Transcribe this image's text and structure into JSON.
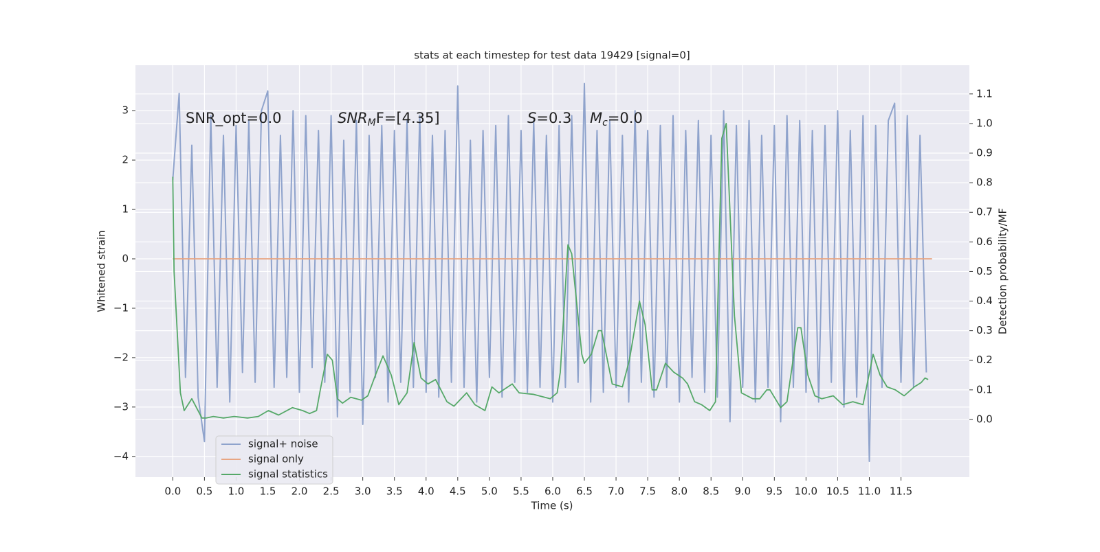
{
  "chart_data": {
    "type": "line",
    "title": "stats at each timestep for test data 19429 [signal=0]",
    "xlabel": "Time (s)",
    "ylabel": "Whitened strain",
    "y2label": "Detection probability/MF",
    "grid": true,
    "legend": "lower left",
    "xlim": [
      -0.59,
      12.58
    ],
    "ylim": [
      -4.42,
      3.92
    ],
    "y2lim": [
      -0.195,
      1.197
    ],
    "xticks": [
      {
        "value": 0,
        "label": "0.0"
      },
      0.5,
      {
        "value": 1,
        "label": "1.0"
      },
      1.5,
      {
        "value": 2,
        "label": "2.0"
      },
      2.5,
      {
        "value": 3,
        "label": "3.0"
      },
      3.5,
      {
        "value": 4,
        "label": "4.0"
      },
      4.5,
      {
        "value": 5,
        "label": "5.0"
      },
      5.5,
      {
        "value": 6,
        "label": "6.0"
      },
      6.5,
      {
        "value": 7,
        "label": "7.0"
      },
      7.5,
      {
        "value": 8,
        "label": "8.0"
      },
      8.5,
      {
        "value": 9,
        "label": "9.0"
      },
      9.5,
      {
        "value": 10,
        "label": "10.0"
      },
      10.5,
      {
        "value": 11,
        "label": "11.0"
      },
      11.5
    ],
    "yticks": [
      {
        "value": -4,
        "label": "−4"
      },
      {
        "value": -3,
        "label": "−3"
      },
      {
        "value": -2,
        "label": "−2"
      },
      {
        "value": -1,
        "label": "−1"
      },
      0,
      1,
      2,
      3
    ],
    "y2ticks": [
      {
        "value": 0,
        "label": "0.0"
      },
      0.1,
      0.2,
      0.3,
      0.4,
      0.5,
      0.6,
      0.7,
      0.8,
      0.9,
      {
        "value": 1,
        "label": "1.0"
      },
      1.1
    ],
    "annotations": [
      {
        "main": "SNR_opt=0.0"
      },
      {
        "main": "SNR",
        "sub": "M",
        "rest": "F=[4.35]"
      },
      {
        "main": "S",
        "rest": "=0.3"
      },
      {
        "main": "M",
        "sub": "c",
        "rest": "=0.0"
      }
    ],
    "series": [
      {
        "name": "signal+ noise",
        "color": "#8fa3cc",
        "x": [
          0,
          0.1,
          0.2,
          0.3,
          0.4,
          0.5,
          0.6,
          0.7,
          0.8,
          0.9,
          1,
          1.1,
          1.2,
          1.3,
          1.4,
          1.5,
          1.6,
          1.7,
          1.8,
          1.9,
          2,
          2.1,
          2.2,
          2.3,
          2.4,
          2.5,
          2.6,
          2.7,
          2.8,
          2.9,
          3,
          3.1,
          3.2,
          3.3,
          3.4,
          3.5,
          3.6,
          3.7,
          3.8,
          3.9,
          4,
          4.1,
          4.2,
          4.3,
          4.4,
          4.5,
          4.6,
          4.7,
          4.8,
          4.9,
          5,
          5.1,
          5.2,
          5.3,
          5.4,
          5.5,
          5.6,
          5.7,
          5.8,
          5.9,
          6,
          6.1,
          6.2,
          6.3,
          6.4,
          6.5,
          6.6,
          6.7,
          6.8,
          6.9,
          7,
          7.1,
          7.2,
          7.3,
          7.4,
          7.5,
          7.6,
          7.7,
          7.8,
          7.9,
          8,
          8.1,
          8.2,
          8.3,
          8.4,
          8.5,
          8.6,
          8.7,
          8.8,
          8.9,
          9,
          9.1,
          9.2,
          9.3,
          9.4,
          9.5,
          9.6,
          9.7,
          9.8,
          9.9,
          10,
          10.1,
          10.2,
          10.3,
          10.4,
          10.5,
          10.6,
          10.7,
          10.8,
          10.9,
          11,
          11.1,
          11.2,
          11.3,
          11.4,
          11.5,
          11.6,
          11.7,
          11.8,
          11.9
        ],
        "values": [
          1.6,
          3.35,
          -2.4,
          2.3,
          -2.8,
          -3.7,
          2.9,
          -2.6,
          2.5,
          -2.9,
          2.7,
          -2.3,
          2.8,
          -2.5,
          3.0,
          3.4,
          -2.6,
          2.5,
          -2.4,
          3.0,
          -2.7,
          2.9,
          -2.2,
          2.6,
          -2.5,
          2.9,
          -3.2,
          2.4,
          -2.7,
          2.8,
          -3.35,
          2.5,
          -2.4,
          2.7,
          -2.9,
          2.6,
          -2.5,
          2.8,
          -2.6,
          2.9,
          -2.7,
          2.5,
          -2.8,
          2.6,
          -2.5,
          3.5,
          -2.6,
          2.4,
          -2.9,
          2.6,
          -2.4,
          2.7,
          -2.8,
          2.9,
          -2.5,
          2.6,
          -2.7,
          2.8,
          -2.6,
          2.5,
          -2.9,
          2.7,
          -2.6,
          2.9,
          -2.5,
          3.55,
          -2.9,
          2.6,
          -2.7,
          2.8,
          -2.6,
          2.5,
          -2.9,
          3.0,
          -2.5,
          2.6,
          -2.8,
          2.7,
          -2.6,
          2.9,
          -2.9,
          2.6,
          -2.4,
          2.8,
          -2.7,
          2.5,
          -2.8,
          3.0,
          -3.3,
          2.7,
          -2.6,
          2.8,
          -2.9,
          2.5,
          -2.6,
          2.7,
          -3.3,
          2.9,
          -2.6,
          2.8,
          -2.7,
          2.6,
          -2.9,
          2.7,
          -2.5,
          3.0,
          -3.0,
          2.6,
          -2.8,
          2.9,
          -4.1,
          2.7,
          -2.6,
          2.8,
          3.15,
          -2.5,
          2.9,
          -2.6,
          2.5,
          -2.3
        ]
      },
      {
        "name": "signal only",
        "color": "#e8a582",
        "x": [
          0,
          11.99
        ],
        "values": [
          0,
          0
        ]
      },
      {
        "name": "signal statistics",
        "color": "#55a868",
        "axis": "y2",
        "x": [
          0,
          0.02,
          0.12,
          0.18,
          0.3,
          0.46,
          0.53,
          0.64,
          0.8,
          0.97,
          1.18,
          1.35,
          1.51,
          1.67,
          1.89,
          2.05,
          2.16,
          2.27,
          2.33,
          2.44,
          2.52,
          2.6,
          2.68,
          2.81,
          2.98,
          3.08,
          3.2,
          3.32,
          3.45,
          3.57,
          3.7,
          3.81,
          3.92,
          4.03,
          4.15,
          4.33,
          4.44,
          4.64,
          4.77,
          4.93,
          5.04,
          5.15,
          5.36,
          5.47,
          5.69,
          5.96,
          6.07,
          6.12,
          6.24,
          6.3,
          6.46,
          6.5,
          6.61,
          6.72,
          6.77,
          6.94,
          7.1,
          7.21,
          7.37,
          7.46,
          7.57,
          7.64,
          7.78,
          7.91,
          8.05,
          8.13,
          8.24,
          8.35,
          8.48,
          8.57,
          8.67,
          8.74,
          8.87,
          8.98,
          9.16,
          9.27,
          9.38,
          9.43,
          9.6,
          9.7,
          9.87,
          9.92,
          10.03,
          10.14,
          10.25,
          10.43,
          10.58,
          10.74,
          10.9,
          11.06,
          11.17,
          11.28,
          11.41,
          11.55,
          11.71,
          11.82,
          11.88,
          11.93
        ],
        "values": [
          0.82,
          0.5,
          0.09,
          0.03,
          0.07,
          0.005,
          0.005,
          0.01,
          0.005,
          0.01,
          0.005,
          0.01,
          0.03,
          0.015,
          0.04,
          0.03,
          0.02,
          0.03,
          0.1,
          0.22,
          0.2,
          0.07,
          0.055,
          0.075,
          0.065,
          0.08,
          0.15,
          0.215,
          0.15,
          0.05,
          0.09,
          0.26,
          0.14,
          0.12,
          0.135,
          0.06,
          0.045,
          0.09,
          0.05,
          0.03,
          0.11,
          0.09,
          0.12,
          0.09,
          0.085,
          0.07,
          0.09,
          0.16,
          0.59,
          0.56,
          0.22,
          0.19,
          0.22,
          0.3,
          0.3,
          0.12,
          0.11,
          0.2,
          0.4,
          0.32,
          0.1,
          0.1,
          0.19,
          0.16,
          0.14,
          0.12,
          0.06,
          0.05,
          0.03,
          0.06,
          0.95,
          1.0,
          0.35,
          0.09,
          0.07,
          0.07,
          0.1,
          0.1,
          0.04,
          0.06,
          0.31,
          0.31,
          0.15,
          0.08,
          0.07,
          0.08,
          0.05,
          0.06,
          0.05,
          0.22,
          0.15,
          0.11,
          0.1,
          0.08,
          0.11,
          0.125,
          0.14,
          0.135
        ]
      }
    ]
  }
}
